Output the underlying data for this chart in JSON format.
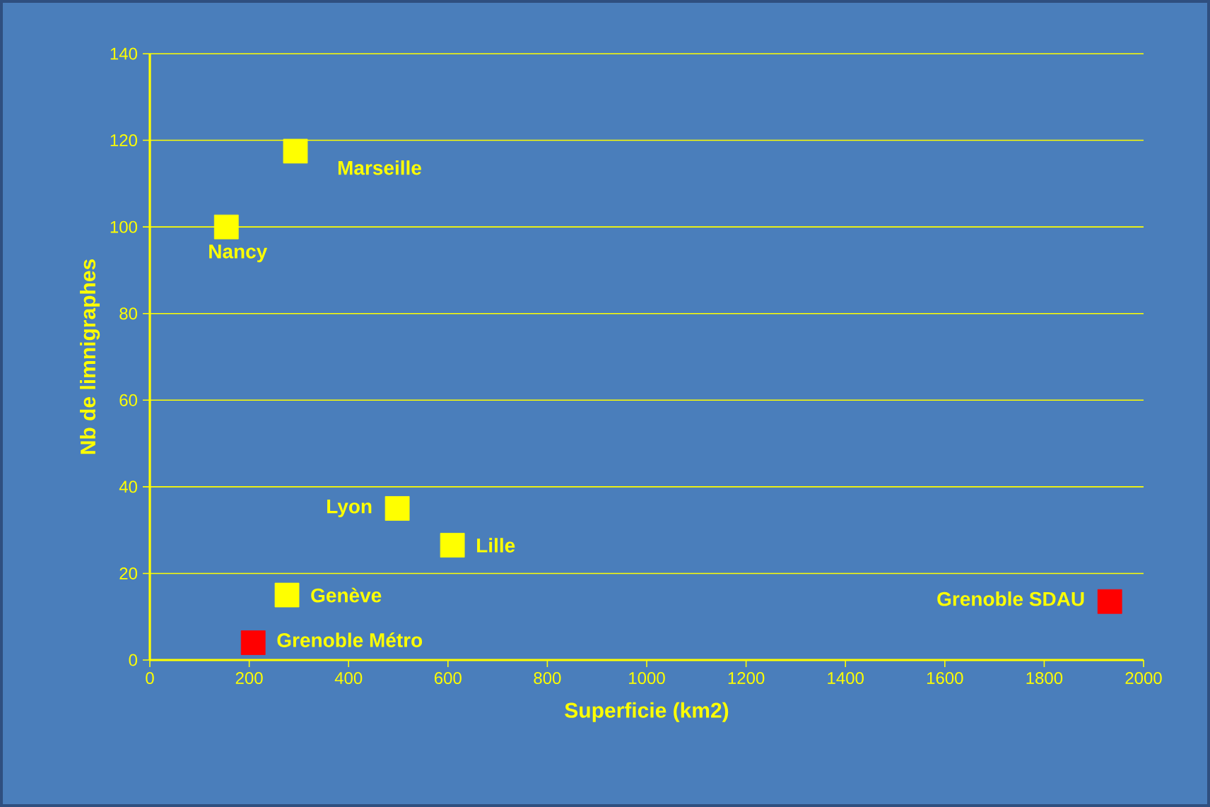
{
  "chart_data": {
    "type": "scatter",
    "xlabel": "Superficie (km2)",
    "ylabel": "Nb de limnigraphes",
    "xlim": [
      0,
      2000
    ],
    "ylim": [
      0,
      140
    ],
    "xticks": [
      0,
      200,
      400,
      600,
      800,
      1000,
      1200,
      1400,
      1600,
      1800,
      2000
    ],
    "yticks": [
      0,
      20,
      40,
      60,
      80,
      100,
      120,
      140
    ],
    "grid": "y",
    "marker": "square",
    "series": [
      {
        "color": "#ffff00",
        "x": [
          293,
          154,
          498,
          609,
          276
        ],
        "values": [
          117.5,
          100,
          35,
          26.5,
          15
        ]
      },
      {
        "color": "#ff0000",
        "x": [
          208,
          1932
        ],
        "values": [
          4,
          13.5
        ]
      }
    ],
    "annotations": [
      {
        "text": "Marseille",
        "x": 293,
        "y": 117.5
      },
      {
        "text": "Nancy",
        "x": 154,
        "y": 100
      },
      {
        "text": "Lyon",
        "x": 498,
        "y": 35
      },
      {
        "text": "Lille",
        "x": 609,
        "y": 26.5
      },
      {
        "text": "Genève",
        "x": 276,
        "y": 15
      },
      {
        "text": "Grenoble Métro",
        "x": 208,
        "y": 4
      },
      {
        "text": "Grenoble SDAU",
        "x": 1932,
        "y": 13.5
      }
    ]
  }
}
